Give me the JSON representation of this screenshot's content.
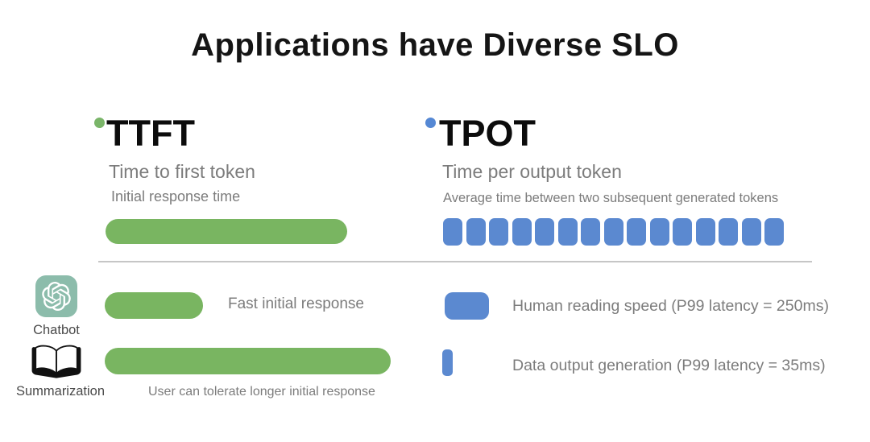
{
  "slide": {
    "title": "Applications have Diverse SLO"
  },
  "metrics": {
    "ttft": {
      "abbr": "TTFT",
      "full_name": "Time to first token",
      "description": "Initial response time",
      "bullet_color": "#7ab569",
      "bar_color": "#79b561"
    },
    "tpot": {
      "abbr": "TPOT",
      "full_name": "Time per output token",
      "description": "Average time between two subsequent generated tokens",
      "bullet_color": "#5588d4",
      "token_color": "#5b89d0",
      "token_count": 15
    }
  },
  "ttft_examples": [
    {
      "icon": "openai-chatbot-icon",
      "label": "Chatbot",
      "annotation": "Fast initial response",
      "bar_length": "short"
    },
    {
      "icon": "open-book-icon",
      "label": "Summarization",
      "annotation": "User can tolerate longer initial response",
      "bar_length": "long"
    }
  ],
  "tpot_examples": [
    {
      "label": "Human reading speed (P99 latency = 250ms)",
      "swatch": "wide"
    },
    {
      "label": "Data output generation (P99 latency = 35ms)",
      "swatch": "narrow"
    }
  ],
  "colors": {
    "green": "#79b561",
    "blue": "#5b89d0",
    "icon_teal": "#8cbcab",
    "gray_text": "#7c7c7c",
    "divider": "#c6c6c6",
    "title_text": "#151515"
  }
}
